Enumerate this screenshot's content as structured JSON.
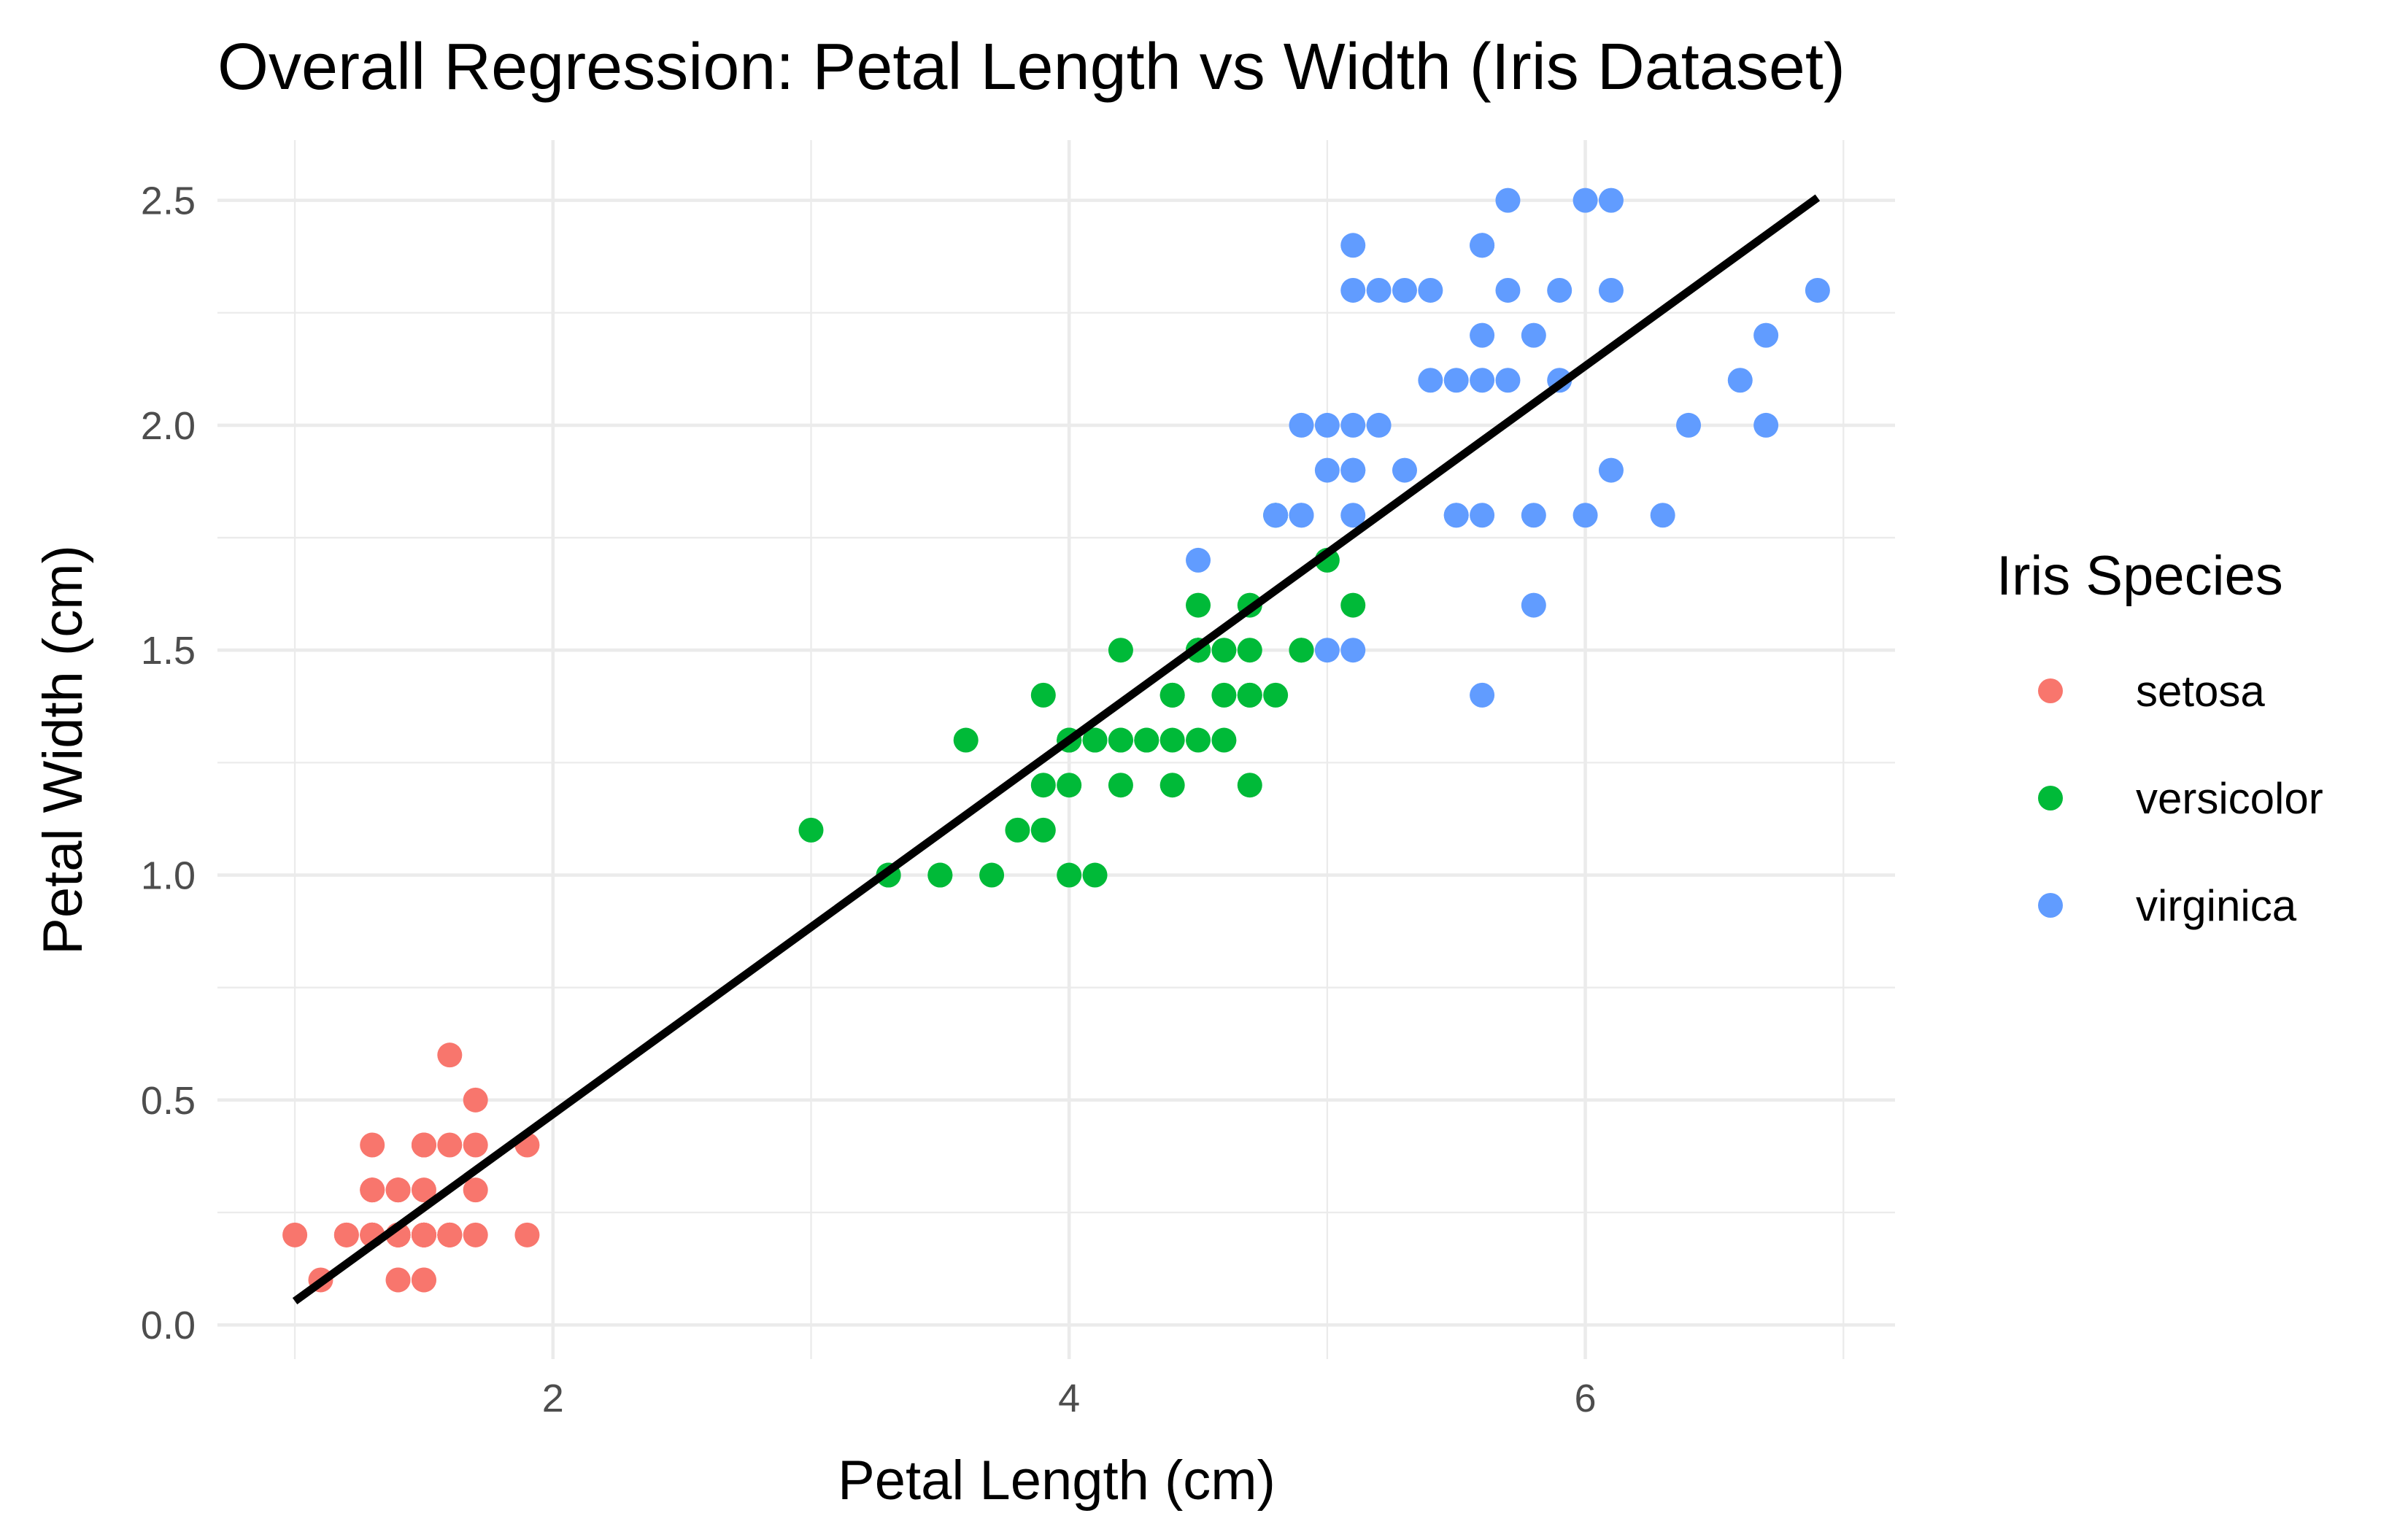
{
  "chart_data": {
    "type": "scatter",
    "title": "Overall Regression: Petal Length vs Width (Iris Dataset)",
    "xlabel": "Petal Length (cm)",
    "ylabel": "Petal Width (cm)",
    "xlim": [
      0.7,
      7.2
    ],
    "ylim": [
      -0.076,
      2.634
    ],
    "xticks": [
      2,
      4,
      6
    ],
    "xtick_labels": [
      "2",
      "4",
      "6"
    ],
    "yticks": [
      0,
      0.5,
      1,
      1.5,
      2,
      2.5
    ],
    "ytick_labels": [
      "0.0",
      "0.5",
      "1.0",
      "1.5",
      "2.0",
      "2.5"
    ],
    "grid": true,
    "legend": {
      "title": "Iris Species",
      "placement": "right"
    },
    "series": [
      {
        "name": "setosa",
        "color": "#F8766D",
        "x": [
          1.4,
          1.4,
          1.3,
          1.5,
          1.4,
          1.7,
          1.4,
          1.5,
          1.4,
          1.5,
          1.5,
          1.6,
          1.4,
          1.1,
          1.2,
          1.5,
          1.3,
          1.4,
          1.7,
          1.5,
          1.7,
          1.5,
          1.0,
          1.7,
          1.9,
          1.6,
          1.6,
          1.5,
          1.4,
          1.6,
          1.6,
          1.5,
          1.5,
          1.4,
          1.5,
          1.2,
          1.3,
          1.4,
          1.3,
          1.5,
          1.3,
          1.3,
          1.3,
          1.6,
          1.9,
          1.4,
          1.6,
          1.4,
          1.5,
          1.4
        ],
        "y": [
          0.2,
          0.2,
          0.2,
          0.2,
          0.2,
          0.4,
          0.3,
          0.2,
          0.2,
          0.1,
          0.2,
          0.2,
          0.1,
          0.1,
          0.2,
          0.4,
          0.4,
          0.3,
          0.3,
          0.3,
          0.2,
          0.4,
          0.2,
          0.5,
          0.2,
          0.2,
          0.4,
          0.2,
          0.2,
          0.2,
          0.2,
          0.4,
          0.1,
          0.2,
          0.2,
          0.2,
          0.2,
          0.1,
          0.2,
          0.2,
          0.3,
          0.3,
          0.2,
          0.6,
          0.4,
          0.3,
          0.2,
          0.2,
          0.2,
          0.2
        ]
      },
      {
        "name": "versicolor",
        "color": "#00BA38",
        "x": [
          4.7,
          4.5,
          4.9,
          4.0,
          4.6,
          4.5,
          4.7,
          3.3,
          4.6,
          3.9,
          3.5,
          4.2,
          4.0,
          4.7,
          3.6,
          4.4,
          4.5,
          4.1,
          4.5,
          3.9,
          4.8,
          4.0,
          4.9,
          4.7,
          4.3,
          4.4,
          4.8,
          5.0,
          4.5,
          3.5,
          3.8,
          3.7,
          3.9,
          5.1,
          4.5,
          4.5,
          4.7,
          4.4,
          4.1,
          4.0,
          4.4,
          4.6,
          4.0,
          3.3,
          4.2,
          4.2,
          4.2,
          4.3,
          3.0,
          4.1
        ],
        "y": [
          1.4,
          1.5,
          1.5,
          1.3,
          1.5,
          1.3,
          1.6,
          1.0,
          1.3,
          1.4,
          1.0,
          1.5,
          1.0,
          1.4,
          1.3,
          1.4,
          1.5,
          1.0,
          1.5,
          1.1,
          1.8,
          1.3,
          1.5,
          1.2,
          1.3,
          1.4,
          1.4,
          1.7,
          1.5,
          1.0,
          1.1,
          1.0,
          1.2,
          1.6,
          1.5,
          1.6,
          1.5,
          1.3,
          1.3,
          1.3,
          1.2,
          1.4,
          1.2,
          1.0,
          1.3,
          1.2,
          1.3,
          1.3,
          1.1,
          1.3
        ]
      },
      {
        "name": "virginica",
        "color": "#619CFF",
        "x": [
          6.0,
          5.1,
          5.9,
          5.6,
          5.8,
          6.6,
          4.5,
          6.3,
          5.8,
          6.1,
          5.1,
          5.3,
          5.5,
          5.0,
          5.1,
          5.3,
          5.5,
          6.7,
          6.9,
          5.0,
          5.7,
          4.9,
          6.7,
          4.9,
          5.7,
          6.0,
          4.8,
          4.9,
          5.6,
          5.8,
          6.1,
          6.4,
          5.6,
          5.1,
          5.6,
          6.1,
          5.6,
          5.5,
          4.8,
          5.4,
          5.6,
          5.1,
          5.1,
          5.9,
          5.7,
          5.2,
          5.0,
          5.2,
          5.4,
          5.1
        ],
        "y": [
          2.5,
          1.9,
          2.1,
          1.8,
          2.2,
          2.1,
          1.7,
          1.8,
          1.8,
          2.5,
          2.0,
          1.9,
          2.1,
          2.0,
          2.4,
          2.3,
          1.8,
          2.2,
          2.3,
          1.5,
          2.3,
          2.0,
          2.0,
          1.8,
          2.1,
          1.8,
          1.8,
          1.8,
          2.1,
          1.6,
          1.9,
          2.0,
          2.2,
          1.5,
          1.4,
          2.3,
          2.4,
          1.8,
          1.8,
          2.1,
          2.4,
          2.3,
          1.9,
          2.3,
          2.5,
          2.3,
          1.9,
          2.0,
          2.3,
          1.8
        ]
      }
    ],
    "regression_line": {
      "intercept": -0.363,
      "slope": 0.4158,
      "x_range": [
        1.0,
        6.9
      ],
      "color": "#000000"
    }
  }
}
